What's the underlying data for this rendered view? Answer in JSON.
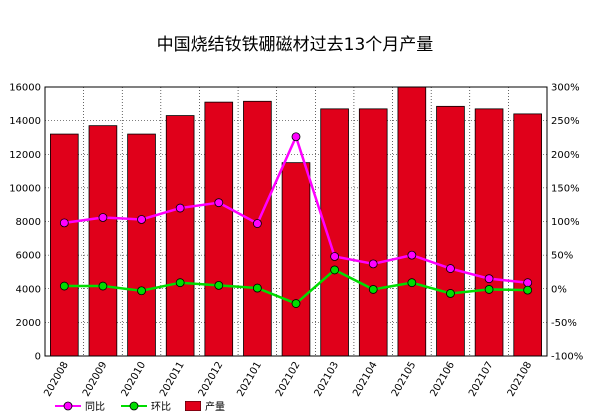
{
  "chart_data": {
    "type": "bar+line",
    "title": "中国烧结钕铁硼磁材过去13个月产量",
    "categories": [
      "202008",
      "202009",
      "202010",
      "202011",
      "202012",
      "202101",
      "202102",
      "202103",
      "202104",
      "202105",
      "202106",
      "202107",
      "202108"
    ],
    "series": [
      {
        "name": "产量",
        "type": "bar",
        "axis": "left",
        "color": "#e0001a",
        "values": [
          13200,
          13700,
          13200,
          14300,
          15100,
          15150,
          11500,
          14700,
          14700,
          16000,
          14850,
          14700,
          14400
        ]
      },
      {
        "name": "同比",
        "type": "line",
        "axis": "right",
        "color": "#ff00ff",
        "values": [
          98,
          106,
          103,
          120,
          128,
          97,
          226,
          48,
          37,
          50,
          30,
          15,
          9
        ]
      },
      {
        "name": "环比",
        "type": "line",
        "axis": "right",
        "color": "#00dd00",
        "values": [
          4,
          4,
          -3,
          9,
          5,
          1,
          -22,
          28,
          -1,
          9,
          -7,
          -1,
          -2
        ]
      }
    ],
    "left_axis": {
      "min": 0,
      "max": 16000,
      "ticks": [
        0,
        2000,
        4000,
        6000,
        8000,
        10000,
        12000,
        14000,
        16000
      ]
    },
    "right_axis": {
      "min": -100,
      "max": 300,
      "ticks": [
        "-100%",
        "-50%",
        "0%",
        "50%",
        "100%",
        "150%",
        "200%",
        "250%",
        "300%"
      ]
    },
    "grid": true,
    "legend_position": "bottom-left"
  },
  "legend": {
    "yoy": "同比",
    "mom": "环比",
    "output": "产量"
  }
}
